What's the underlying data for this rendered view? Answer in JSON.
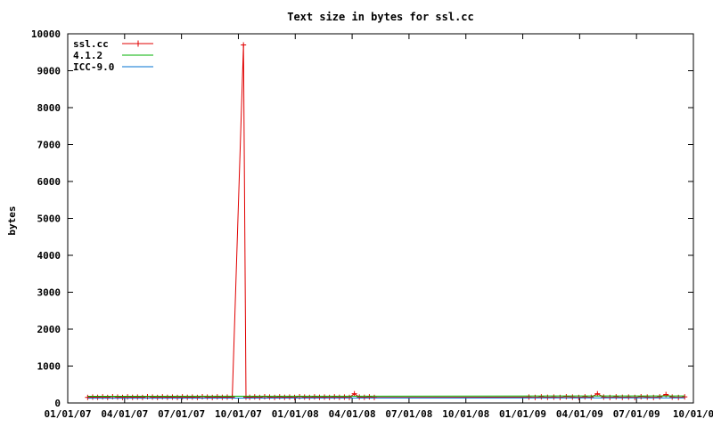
{
  "chart_data": {
    "type": "line",
    "title": "Text size in bytes for ssl.cc",
    "xlabel": "",
    "ylabel": "bytes",
    "x_type": "date",
    "xlim": [
      "2007-01-01",
      "2009-10-01"
    ],
    "ylim": [
      0,
      10000
    ],
    "x_ticks": [
      "01/01/07",
      "04/01/07",
      "07/01/07",
      "10/01/07",
      "01/01/08",
      "04/01/08",
      "07/01/08",
      "10/01/08",
      "01/01/09",
      "04/01/09",
      "07/01/09",
      "10/01/0"
    ],
    "y_ticks": [
      0,
      1000,
      2000,
      3000,
      4000,
      5000,
      6000,
      7000,
      8000,
      9000,
      10000
    ],
    "grid": false,
    "legend_position": "top-left",
    "series": [
      {
        "name": "ssl.cc",
        "color": "#e00000",
        "marker": "plus",
        "x": [
          "2007-02-02",
          "2007-02-10",
          "2007-02-18",
          "2007-02-26",
          "2007-03-06",
          "2007-03-14",
          "2007-03-22",
          "2007-03-30",
          "2007-04-07",
          "2007-04-15",
          "2007-04-23",
          "2007-05-01",
          "2007-05-09",
          "2007-05-17",
          "2007-05-25",
          "2007-06-02",
          "2007-06-10",
          "2007-06-18",
          "2007-06-26",
          "2007-07-04",
          "2007-07-12",
          "2007-07-20",
          "2007-07-28",
          "2007-08-05",
          "2007-08-13",
          "2007-08-21",
          "2007-08-29",
          "2007-09-06",
          "2007-09-14",
          "2007-09-22",
          "2007-10-10",
          "2007-10-14",
          "2007-10-20",
          "2007-10-28",
          "2007-11-05",
          "2007-11-13",
          "2007-11-21",
          "2007-11-29",
          "2007-12-07",
          "2007-12-15",
          "2007-12-23",
          "2007-12-31",
          "2008-01-08",
          "2008-01-16",
          "2008-01-24",
          "2008-02-01",
          "2008-02-09",
          "2008-02-17",
          "2008-02-25",
          "2008-03-04",
          "2008-03-12",
          "2008-03-20",
          "2008-03-28",
          "2008-04-05",
          "2008-04-13",
          "2008-04-21",
          "2008-04-29",
          "2008-05-07",
          "2009-01-10",
          "2009-01-20",
          "2009-01-30",
          "2009-02-09",
          "2009-02-19",
          "2009-03-01",
          "2009-03-11",
          "2009-03-21",
          "2009-03-31",
          "2009-04-10",
          "2009-04-20",
          "2009-04-30",
          "2009-05-10",
          "2009-05-20",
          "2009-05-30",
          "2009-06-09",
          "2009-06-19",
          "2009-06-29",
          "2009-07-09",
          "2009-07-19",
          "2009-07-29",
          "2009-08-08",
          "2009-08-18",
          "2009-08-28",
          "2009-09-07",
          "2009-09-17"
        ],
        "values": [
          150,
          160,
          155,
          165,
          150,
          170,
          160,
          150,
          165,
          155,
          160,
          150,
          170,
          160,
          150,
          165,
          155,
          160,
          150,
          165,
          155,
          160,
          150,
          170,
          160,
          150,
          165,
          155,
          160,
          160,
          9700,
          160,
          155,
          165,
          150,
          170,
          160,
          150,
          165,
          155,
          160,
          150,
          170,
          160,
          150,
          165,
          155,
          160,
          150,
          165,
          155,
          160,
          150,
          250,
          160,
          155,
          165,
          150,
          160,
          150,
          165,
          155,
          160,
          150,
          170,
          160,
          150,
          165,
          155,
          250,
          160,
          150,
          165,
          155,
          160,
          150,
          170,
          160,
          150,
          165,
          230,
          160,
          150,
          165
        ]
      },
      {
        "name": "4.1.2",
        "color": "#00b000",
        "marker": "none",
        "x": [
          "2007-02-02",
          "2009-09-17"
        ],
        "values": [
          180,
          190
        ]
      },
      {
        "name": "ICC-9.0",
        "color": "#0070d0",
        "marker": "none",
        "x": [
          "2007-02-02",
          "2009-09-17"
        ],
        "values": [
          130,
          140
        ]
      }
    ]
  }
}
